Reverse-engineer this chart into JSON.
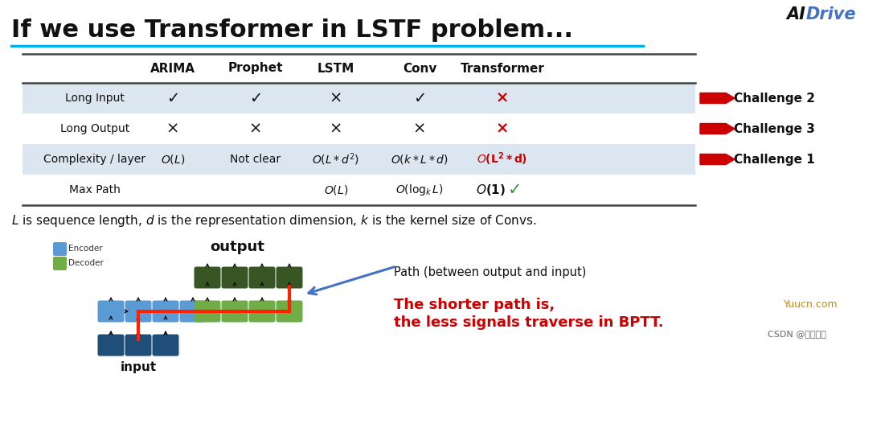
{
  "title": "If we use Transformer in LSTF problem...",
  "title_fontsize": 22,
  "bg_color": "#ffffff",
  "table_header": [
    "",
    "ARIMA",
    "Prophet",
    "LSTM",
    "Conv",
    "Transformer"
  ],
  "rows": [
    {
      "label": "Long Input",
      "values": [
        "✓",
        "✓",
        "×",
        "✓",
        "×"
      ],
      "bg": "#dce6f1",
      "challenge": "Challenge 2"
    },
    {
      "label": "Long Output",
      "values": [
        "×",
        "×",
        "×",
        "×",
        "×"
      ],
      "bg": "#ffffff",
      "challenge": "Challenge 3"
    },
    {
      "label": "Complexity / layer",
      "values": [
        "cpx_OL",
        "Not clear",
        "cpx_OLd2",
        "cpx_OkLd",
        "cpx_OL2d"
      ],
      "bg": "#dce6f1",
      "challenge": "Challenge 1"
    },
    {
      "label": "Max Path",
      "values": [
        "",
        "",
        "mp_OL",
        "mp_OlogkL",
        "mp_O1"
      ],
      "bg": "#ffffff",
      "challenge": ""
    }
  ],
  "check_color": "#111111",
  "cross_color": "#111111",
  "red_cross_color": "#cc0000",
  "red_text_color": "#cc0000",
  "green_check_color": "#339933",
  "challenge_color": "#cc0000",
  "arrow_color": "#cc0000",
  "encoder_color": "#5b9bd5",
  "decoder_color": "#70ad47",
  "dark_encoder_color": "#1f4e79",
  "dark_decoder_color": "#375623",
  "path_color": "#ff2200",
  "blue_arrow_color": "#4472c4",
  "path_label": "Path (between output and input)",
  "shorter_path_text1": "The shorter path is,",
  "shorter_path_text2": "the less signals traverse in BPTT.",
  "shorter_path_color": "#cc0000",
  "watermark1": "Yuucn.com",
  "watermark2": "CSDN @思考实践"
}
